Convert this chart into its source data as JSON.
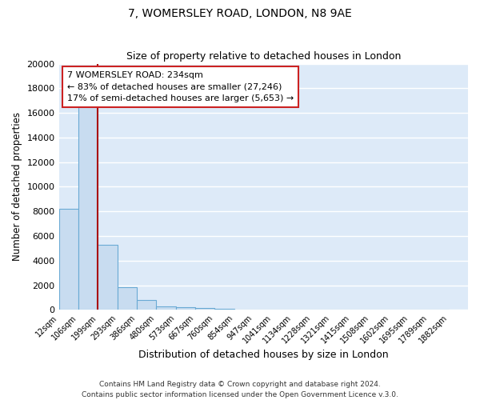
{
  "title": "7, WOMERSLEY ROAD, LONDON, N8 9AE",
  "subtitle": "Size of property relative to detached houses in London",
  "xlabel": "Distribution of detached houses by size in London",
  "ylabel": "Number of detached properties",
  "bar_values": [
    8200,
    16500,
    5300,
    1850,
    800,
    300,
    200,
    130,
    100,
    0,
    0,
    0,
    0,
    0,
    0,
    0,
    0,
    0,
    0,
    0
  ],
  "bar_labels": [
    "12sqm",
    "106sqm",
    "199sqm",
    "293sqm",
    "386sqm",
    "480sqm",
    "573sqm",
    "667sqm",
    "760sqm",
    "854sqm",
    "947sqm",
    "1041sqm",
    "1134sqm",
    "1228sqm",
    "1321sqm",
    "1415sqm",
    "1508sqm",
    "1602sqm",
    "1695sqm",
    "1789sqm",
    "1882sqm"
  ],
  "bar_color": "#c8dcf0",
  "bar_edge_color": "#6aaad4",
  "background_color": "#ddeaf8",
  "grid_color": "#ffffff",
  "vline_color": "#aa1111",
  "ylim": [
    0,
    20000
  ],
  "yticks": [
    0,
    2000,
    4000,
    6000,
    8000,
    10000,
    12000,
    14000,
    16000,
    18000,
    20000
  ],
  "annotation_title": "7 WOMERSLEY ROAD: 234sqm",
  "annotation_line1": "← 83% of detached houses are smaller (27,246)",
  "annotation_line2": "17% of semi-detached houses are larger (5,653) →",
  "annotation_box_color": "#ffffff",
  "annotation_box_edge": "#cc2222",
  "footer1": "Contains HM Land Registry data © Crown copyright and database right 2024.",
  "footer2": "Contains public sector information licensed under the Open Government Licence v.3.0."
}
